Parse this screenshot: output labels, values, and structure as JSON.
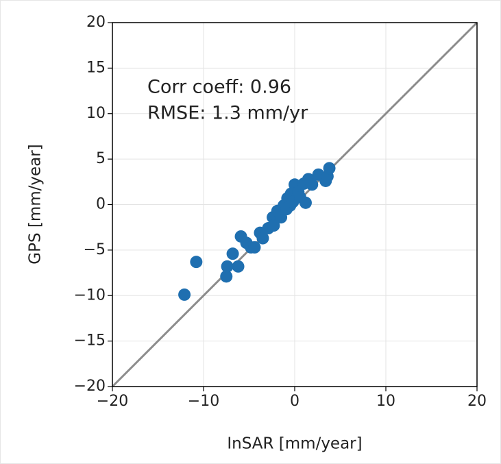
{
  "chart_data": {
    "type": "scatter",
    "xlabel": "InSAR [mm/year]",
    "ylabel": "GPS [mm/year]",
    "annotations": [
      "Corr coeff: 0.96",
      "RMSE: 1.3 mm/yr"
    ],
    "xlim": [
      -20,
      20
    ],
    "ylim": [
      -20,
      20
    ],
    "xticks": [
      {
        "value": -20,
        "label": "−20"
      },
      {
        "value": -10,
        "label": "−10"
      },
      0,
      10,
      20
    ],
    "yticks": [
      {
        "value": -20,
        "label": "−20"
      },
      {
        "value": -15,
        "label": "−15"
      },
      {
        "value": -10,
        "label": "−10"
      },
      {
        "value": -5,
        "label": "−5"
      },
      0,
      5,
      10,
      15,
      20
    ],
    "grid": true,
    "color": "#1f6fb0",
    "line_color": "#8c8c8c",
    "x": [
      -12.1,
      -10.8,
      -7.5,
      -7.4,
      -6.8,
      -6.2,
      -5.9,
      -5.3,
      -4.8,
      -4.4,
      -3.8,
      -3.5,
      -2.9,
      -2.4,
      -2.3,
      -1.9,
      -1.5,
      -1.2,
      -0.9,
      -0.8,
      -0.5,
      -0.4,
      -0.2,
      0,
      0.4,
      0.6,
      1.0,
      1.2,
      1.5,
      1.9,
      2.6,
      3.4,
      3.6,
      3.8
    ],
    "values": [
      -9.9,
      -6.3,
      -7.9,
      -6.8,
      -5.4,
      -6.8,
      -3.5,
      -4.2,
      -4.7,
      -4.7,
      -3.1,
      -3.7,
      -2.6,
      -1.4,
      -2.3,
      -0.7,
      -1.4,
      -0.1,
      -0.5,
      0.7,
      -0.1,
      1.2,
      0.3,
      2.2,
      1.4,
      0.8,
      2.3,
      0.2,
      2.8,
      2.2,
      3.3,
      2.6,
      3.1,
      4.0
    ]
  }
}
